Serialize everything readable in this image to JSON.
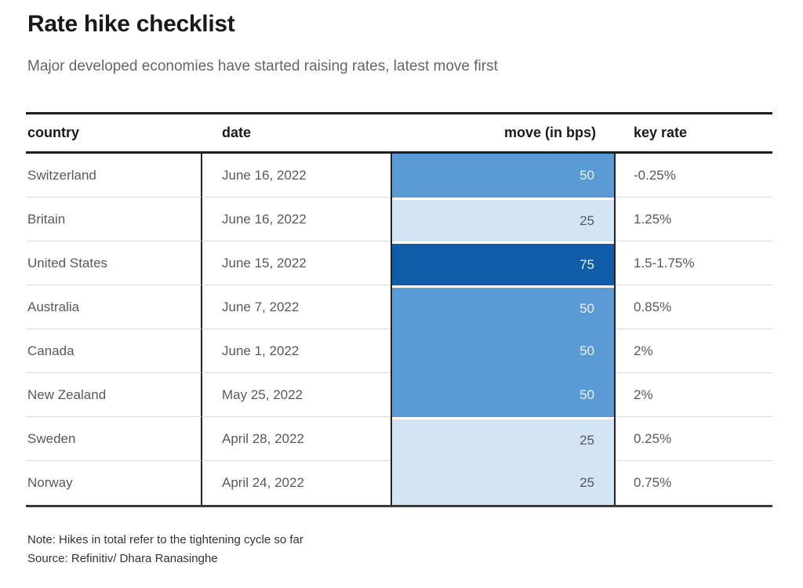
{
  "chart_data": {
    "type": "table",
    "title": "Rate hike checklist",
    "subtitle": "Major developed economies have started raising rates, latest move first",
    "columns": [
      "country",
      "date",
      "move (in bps)",
      "key rate"
    ],
    "rows": [
      {
        "country": "Switzerland",
        "date": "June 16, 2022",
        "move_bps": 50,
        "key_rate": "-0.25%"
      },
      {
        "country": "Britain",
        "date": "June 16, 2022",
        "move_bps": 25,
        "key_rate": "1.25%"
      },
      {
        "country": "United States",
        "date": "June 15, 2022",
        "move_bps": 75,
        "key_rate": "1.5-1.75%"
      },
      {
        "country": "Australia",
        "date": "June 7, 2022",
        "move_bps": 50,
        "key_rate": "0.85%"
      },
      {
        "country": "Canada",
        "date": "June 1, 2022",
        "move_bps": 50,
        "key_rate": "2%"
      },
      {
        "country": "New Zealand",
        "date": "May 25, 2022",
        "move_bps": 50,
        "key_rate": "2%"
      },
      {
        "country": "Sweden",
        "date": "April 28, 2022",
        "move_bps": 25,
        "key_rate": "0.25%"
      },
      {
        "country": "Norway",
        "date": "April 24, 2022",
        "move_bps": 25,
        "key_rate": "0.75%"
      }
    ],
    "move_colors": {
      "25": {
        "bg": "#d3e4f2",
        "text": "#55585c"
      },
      "50": {
        "bg": "#5b9bd5",
        "text": "#e9f0f8"
      },
      "75": {
        "bg": "#0f5ca8",
        "text": "#e9f0f8"
      }
    },
    "note": "Note: Hikes in total refer to the tightening cycle so far",
    "source": "Source: Refinitiv/ Dhara Ranasinghe",
    "layout": {
      "legend": "none",
      "grid": "row-separators",
      "sort": "latest move first"
    }
  }
}
